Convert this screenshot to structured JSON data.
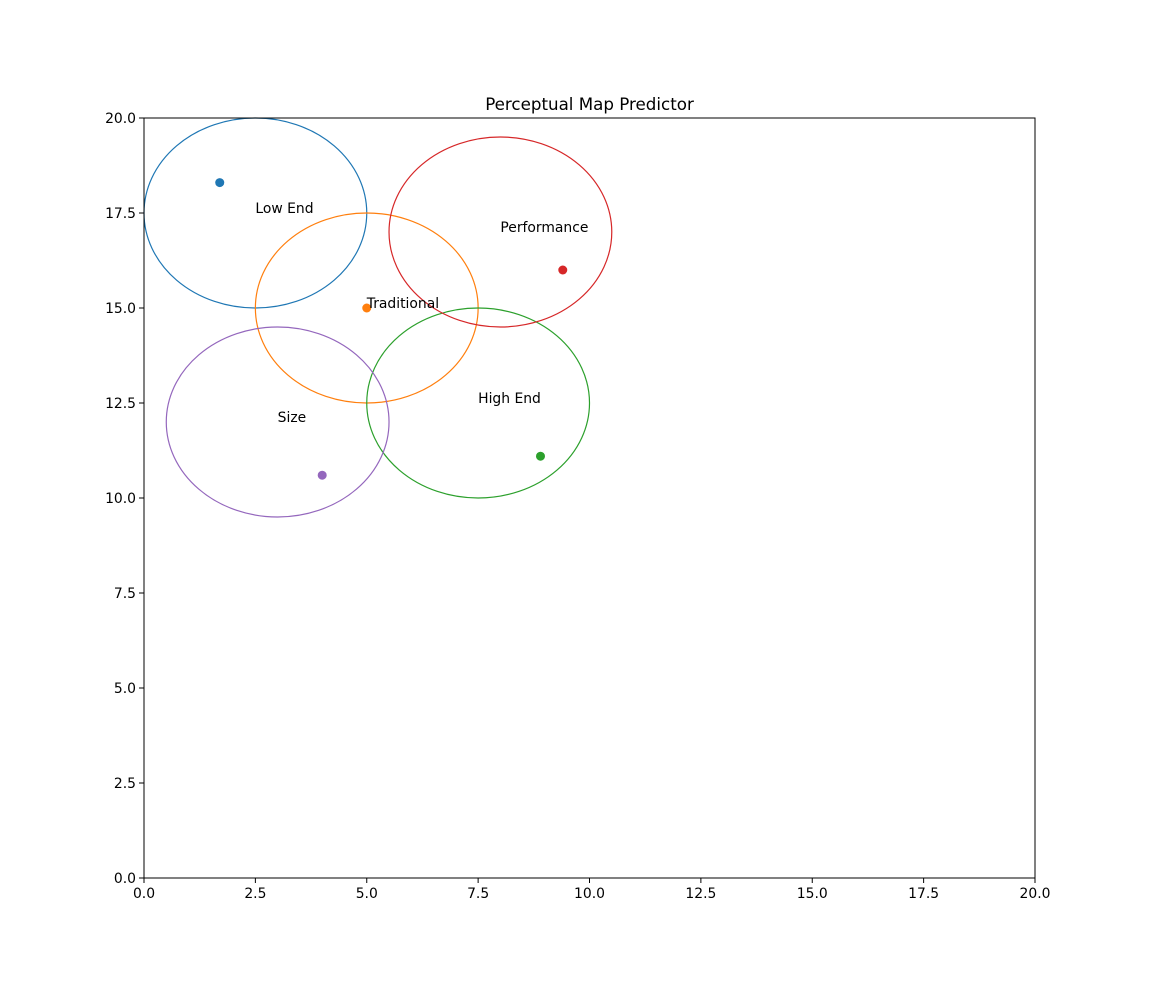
{
  "chart_data": {
    "type": "scatter",
    "title": "Perceptual Map Predictor",
    "xlabel": "",
    "ylabel": "",
    "xlim": [
      0,
      20
    ],
    "ylim": [
      0,
      20
    ],
    "xticks": [
      "0.0",
      "2.5",
      "5.0",
      "7.5",
      "10.0",
      "12.5",
      "15.0",
      "17.5",
      "20.0"
    ],
    "yticks": [
      "0.0",
      "2.5",
      "5.0",
      "7.5",
      "10.0",
      "12.5",
      "15.0",
      "17.5",
      "20.0"
    ],
    "grid": false,
    "segments": [
      {
        "label": "Low End",
        "color": "#1f77b4",
        "center": [
          2.5,
          17.5
        ],
        "radius": 2.5,
        "point": [
          1.7,
          18.3
        ]
      },
      {
        "label": "Traditional",
        "color": "#ff7f0e",
        "center": [
          5.0,
          15.0
        ],
        "radius": 2.5,
        "point": [
          5.0,
          15.0
        ]
      },
      {
        "label": "High End",
        "color": "#2ca02c",
        "center": [
          7.5,
          12.5
        ],
        "radius": 2.5,
        "point": [
          8.9,
          11.1
        ]
      },
      {
        "label": "Performance",
        "color": "#d62728",
        "center": [
          8.0,
          17.0
        ],
        "radius": 2.5,
        "point": [
          9.4,
          16.0
        ]
      },
      {
        "label": "Size",
        "color": "#9467bd",
        "center": [
          3.0,
          12.0
        ],
        "radius": 2.5,
        "point": [
          4.0,
          10.6
        ]
      }
    ]
  }
}
